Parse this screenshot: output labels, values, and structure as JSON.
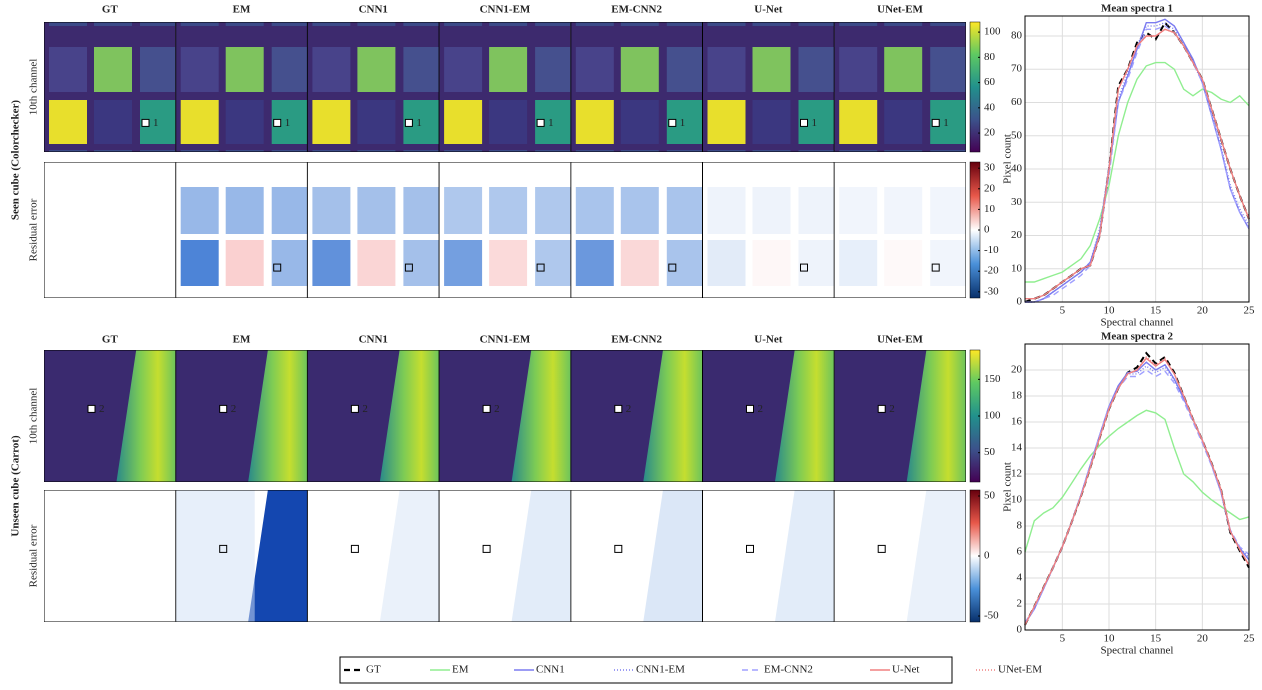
{
  "figure": {
    "columns": [
      "GT",
      "EM",
      "CNN1",
      "CNN1-EM",
      "EM-CNN2",
      "U-Net",
      "UNet-EM"
    ],
    "row_groups": [
      {
        "title": "Seen cube (Colorchecker)",
        "image_label": "10th channel",
        "residual_label": "Residual error",
        "marker": "1",
        "image_colorbar": {
          "lim": [
            5,
            108
          ],
          "ticks": [
            20,
            40,
            60,
            80,
            100
          ]
        },
        "residual_colorbar": {
          "lim": [
            -33,
            33
          ],
          "ticks": [
            -30,
            -20,
            -10,
            0,
            10,
            20,
            30
          ]
        }
      },
      {
        "title": "Unseen cube (Carrot)",
        "image_label": "10th channel",
        "residual_label": "Residual error",
        "marker": "2",
        "image_colorbar": {
          "lim": [
            10,
            190
          ],
          "ticks": [
            50,
            100,
            150
          ]
        },
        "residual_colorbar": {
          "lim": [
            -55,
            55
          ],
          "ticks": [
            -50,
            0,
            50
          ]
        }
      }
    ]
  },
  "chart_data": [
    {
      "type": "line",
      "title": "Mean spectra 1",
      "x_label": "Spectral channel",
      "y_label": "Pixel count",
      "x": [
        1,
        2,
        3,
        4,
        5,
        6,
        7,
        8,
        9,
        10,
        11,
        12,
        13,
        14,
        15,
        16,
        17,
        18,
        19,
        20,
        21,
        22,
        23,
        24,
        25
      ],
      "xlim": [
        1,
        25
      ],
      "xticks": [
        5,
        10,
        15,
        20,
        25
      ],
      "ylim": [
        0,
        86
      ],
      "yticks": [
        0,
        10,
        20,
        30,
        40,
        50,
        60,
        70,
        80
      ],
      "grid": true,
      "series": [
        {
          "name": "GT",
          "color": "#000000",
          "dash": "6,4",
          "values": [
            0,
            1,
            2,
            4,
            6,
            8,
            10,
            11,
            20,
            40,
            65,
            70,
            78,
            81,
            79,
            84,
            81,
            77,
            72,
            67,
            58,
            49,
            40,
            32,
            25
          ]
        },
        {
          "name": "EM",
          "color": "#90ee90",
          "dash": "none",
          "values": [
            6,
            6,
            7,
            8,
            9,
            11,
            13,
            17,
            25,
            35,
            50,
            60,
            67,
            71,
            72,
            72,
            70,
            64,
            62,
            64,
            63,
            61,
            60,
            62,
            59
          ]
        },
        {
          "name": "CNN1",
          "color": "#7b7bf0",
          "dash": "none",
          "values": [
            0,
            0,
            1,
            3,
            5,
            7,
            9,
            12,
            21,
            40,
            60,
            68,
            76,
            84,
            84,
            85,
            83,
            78,
            73,
            66,
            56,
            46,
            34,
            27,
            22
          ]
        },
        {
          "name": "CNN1-EM",
          "color": "#7b7bf0",
          "dash": "1,2",
          "values": [
            0,
            0,
            1,
            3,
            5,
            7,
            9,
            12,
            22,
            41,
            61,
            69,
            77,
            83,
            83,
            84,
            82,
            78,
            72,
            66,
            57,
            47,
            35,
            28,
            23
          ]
        },
        {
          "name": "EM-CNN2",
          "color": "#a0a0ff",
          "dash": "6,4",
          "values": [
            0,
            0,
            1,
            2,
            4,
            6,
            8,
            11,
            20,
            38,
            60,
            67,
            75,
            82,
            82,
            83,
            81,
            77,
            72,
            66,
            56,
            46,
            34,
            27,
            22
          ]
        },
        {
          "name": "U-Net",
          "color": "#f08080",
          "dash": "none",
          "values": [
            1,
            1,
            2,
            4,
            6,
            8,
            10,
            11,
            20,
            40,
            64,
            70,
            77,
            80,
            80,
            82,
            81,
            77,
            72,
            67,
            58,
            49,
            40,
            32,
            25
          ]
        },
        {
          "name": "UNet-EM",
          "color": "#f08080",
          "dash": "1,2",
          "values": [
            1,
            1,
            2,
            4,
            6,
            8,
            10,
            11,
            20,
            40,
            64,
            70,
            77,
            80,
            80,
            82,
            81,
            77,
            72,
            67,
            58,
            49,
            40,
            32,
            25
          ]
        }
      ]
    },
    {
      "type": "line",
      "title": "Mean spectra 2",
      "x_label": "Spectral channel",
      "y_label": "Pixel count",
      "x": [
        1,
        2,
        3,
        4,
        5,
        6,
        7,
        8,
        9,
        10,
        11,
        12,
        13,
        14,
        15,
        16,
        17,
        18,
        19,
        20,
        21,
        22,
        23,
        24,
        25
      ],
      "xlim": [
        1,
        25
      ],
      "xticks": [
        5,
        10,
        15,
        20,
        25
      ],
      "ylim": [
        0,
        22
      ],
      "yticks": [
        0,
        2,
        4,
        6,
        8,
        10,
        12,
        14,
        16,
        18,
        20
      ],
      "grid": true,
      "series": [
        {
          "name": "GT",
          "color": "#000000",
          "dash": "6,4",
          "values": [
            0.4,
            1.8,
            3.3,
            4.8,
            6.4,
            8.3,
            10.3,
            12.5,
            14.8,
            17,
            18.6,
            19.8,
            20.2,
            21.3,
            20.5,
            21,
            19.8,
            18,
            16.2,
            14.6,
            12.8,
            10.8,
            7.5,
            6.1,
            4.8
          ]
        },
        {
          "name": "EM",
          "color": "#90ee90",
          "dash": "none",
          "values": [
            6,
            8.4,
            9,
            9.4,
            10.2,
            11.3,
            12.4,
            13.4,
            14.2,
            14.9,
            15.5,
            16,
            16.5,
            16.9,
            16.7,
            16.2,
            14,
            12,
            11.4,
            10.6,
            10,
            9.5,
            9,
            8.5,
            8.7
          ]
        },
        {
          "name": "CNN1",
          "color": "#7b7bf0",
          "dash": "none",
          "values": [
            0.5,
            1.6,
            3.2,
            4.8,
            6.4,
            8.3,
            10.4,
            12.7,
            15,
            17.2,
            18.8,
            19.8,
            19.9,
            20.6,
            20,
            20.4,
            19.3,
            17.8,
            16.2,
            14.6,
            12.7,
            10.6,
            7.6,
            6.3,
            5.4
          ]
        },
        {
          "name": "CNN1-EM",
          "color": "#7b7bf0",
          "dash": "1,2",
          "values": [
            0.5,
            1.6,
            3.2,
            4.8,
            6.4,
            8.3,
            10.4,
            12.7,
            15,
            17.2,
            18.8,
            19.7,
            19.7,
            20.3,
            19.8,
            20.2,
            19.2,
            17.8,
            16.2,
            14.6,
            12.7,
            10.6,
            7.6,
            6.3,
            5.6
          ]
        },
        {
          "name": "EM-CNN2",
          "color": "#a0a0ff",
          "dash": "6,4",
          "values": [
            0.6,
            1.6,
            3.2,
            4.8,
            6.4,
            8.3,
            10.4,
            12.7,
            15,
            17.1,
            18.6,
            19.5,
            19.5,
            20,
            19.5,
            19.9,
            19,
            17.6,
            16,
            14.4,
            12.6,
            10.6,
            7.7,
            6.4,
            5.8
          ]
        },
        {
          "name": "U-Net",
          "color": "#f08080",
          "dash": "none",
          "values": [
            0.4,
            1.8,
            3.3,
            4.8,
            6.4,
            8.3,
            10.3,
            12.5,
            14.8,
            17,
            18.6,
            19.7,
            20,
            20.9,
            20.3,
            20.8,
            19.7,
            18,
            16.2,
            14.6,
            12.8,
            10.8,
            7.6,
            6.2,
            5
          ]
        },
        {
          "name": "UNet-EM",
          "color": "#f08080",
          "dash": "1,2",
          "values": [
            0.4,
            1.8,
            3.3,
            4.8,
            6.4,
            8.3,
            10.3,
            12.5,
            14.8,
            17,
            18.6,
            19.7,
            20,
            21,
            20.4,
            20.9,
            19.7,
            18,
            16.2,
            14.6,
            12.8,
            10.8,
            7.6,
            6.2,
            5
          ]
        }
      ]
    }
  ]
}
